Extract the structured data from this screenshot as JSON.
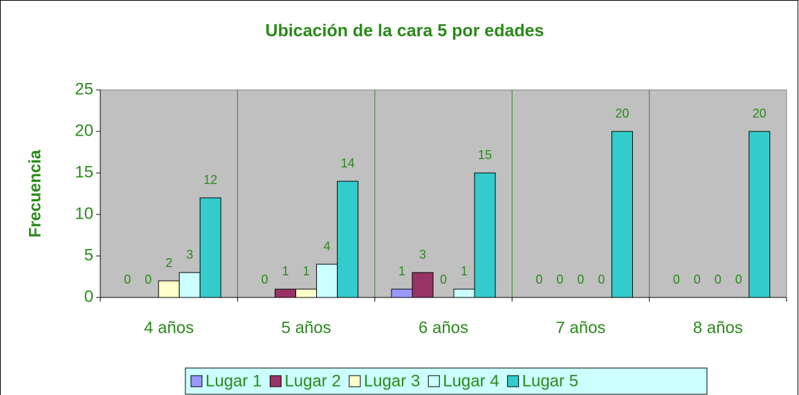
{
  "chart_data": {
    "type": "bar",
    "title": "Ubicación de la cara 5 por edades",
    "y_label": "Frecuencia",
    "categories": [
      "4 años",
      "5 años",
      "6 años",
      "7 años",
      "8 años"
    ],
    "series": [
      {
        "name": "Lugar 1",
        "color": "#9999ff",
        "values": [
          0,
          0,
          1,
          0,
          0
        ]
      },
      {
        "name": "Lugar 2",
        "color": "#993366",
        "values": [
          0,
          1,
          3,
          0,
          0
        ]
      },
      {
        "name": "Lugar 3",
        "color": "#ffffcc",
        "values": [
          2,
          1,
          0,
          0,
          0
        ]
      },
      {
        "name": "Lugar 4",
        "color": "#ccffff",
        "values": [
          3,
          4,
          1,
          0,
          0
        ]
      },
      {
        "name": "Lugar 5",
        "color": "#33cccc",
        "values": [
          12,
          14,
          15,
          20,
          20
        ]
      }
    ],
    "ylim": [
      0,
      25
    ],
    "yticks": [
      0,
      5,
      10,
      15,
      20,
      25
    ],
    "grid": false,
    "legend": "bottom",
    "data_labels": true
  }
}
